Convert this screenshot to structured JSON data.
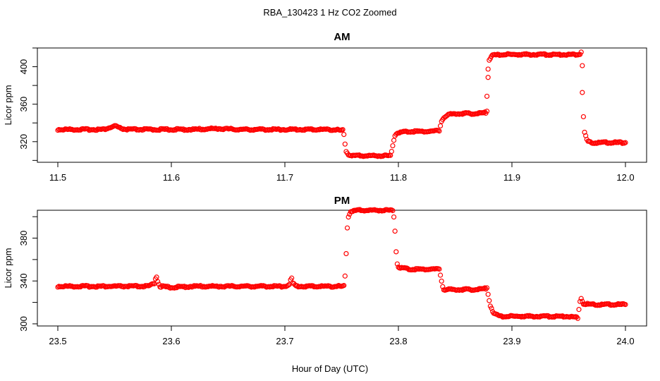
{
  "figure": {
    "title": "RBA_130423  1 Hz CO2 Zoomed",
    "xlabel": "Hour of Day (UTC)"
  },
  "chart_data": [
    {
      "type": "scatter",
      "title": "AM",
      "ylabel": "Licor ppm",
      "xlim": [
        11.5,
        12.0
      ],
      "ylim": [
        298,
        420
      ],
      "xticks": [
        11.5,
        11.6,
        11.7,
        11.8,
        11.9,
        12.0
      ],
      "xtick_labels": [
        "11.5",
        "11.6",
        "11.7",
        "11.8",
        "11.9",
        "12.0"
      ],
      "yticks": [
        320,
        360,
        400
      ],
      "ytick_labels": [
        "320",
        "360",
        "400"
      ],
      "marker_color": "#ff0000",
      "grid": false,
      "points": [
        [
          11.5,
          333
        ],
        [
          11.52,
          333
        ],
        [
          11.54,
          333
        ],
        [
          11.549,
          336
        ],
        [
          11.551,
          337
        ],
        [
          11.553,
          335
        ],
        [
          11.56,
          333
        ],
        [
          11.58,
          333
        ],
        [
          11.6,
          333
        ],
        [
          11.62,
          333
        ],
        [
          11.64,
          334
        ],
        [
          11.66,
          333
        ],
        [
          11.68,
          333
        ],
        [
          11.7,
          333
        ],
        [
          11.72,
          333
        ],
        [
          11.74,
          333
        ],
        [
          11.751,
          332
        ],
        [
          11.752,
          327
        ],
        [
          11.753,
          318
        ],
        [
          11.754,
          310
        ],
        [
          11.756,
          306
        ],
        [
          11.76,
          305
        ],
        [
          11.77,
          305
        ],
        [
          11.78,
          305
        ],
        [
          11.79,
          305
        ],
        [
          11.793,
          305
        ],
        [
          11.794,
          310
        ],
        [
          11.795,
          316
        ],
        [
          11.796,
          322
        ],
        [
          11.797,
          327
        ],
        [
          11.8,
          330
        ],
        [
          11.81,
          331
        ],
        [
          11.82,
          331
        ],
        [
          11.83,
          331
        ],
        [
          11.836,
          332
        ],
        [
          11.837,
          337
        ],
        [
          11.838,
          342
        ],
        [
          11.84,
          346
        ],
        [
          11.845,
          349
        ],
        [
          11.85,
          350
        ],
        [
          11.86,
          350
        ],
        [
          11.87,
          350
        ],
        [
          11.877,
          351
        ],
        [
          11.878,
          353
        ],
        [
          11.878,
          369
        ],
        [
          11.879,
          389
        ],
        [
          11.879,
          398
        ],
        [
          11.88,
          407
        ],
        [
          11.882,
          412
        ],
        [
          11.89,
          413
        ],
        [
          11.9,
          413
        ],
        [
          11.91,
          413
        ],
        [
          11.92,
          413
        ],
        [
          11.93,
          413
        ],
        [
          11.94,
          413
        ],
        [
          11.95,
          413
        ],
        [
          11.958,
          413
        ],
        [
          11.96,
          414
        ],
        [
          11.961,
          416
        ],
        [
          11.962,
          402
        ],
        [
          11.962,
          373
        ],
        [
          11.963,
          346
        ],
        [
          11.964,
          330
        ],
        [
          11.965,
          326
        ],
        [
          11.966,
          322
        ],
        [
          11.967,
          320
        ],
        [
          11.97,
          319
        ],
        [
          11.98,
          319
        ],
        [
          11.99,
          319
        ],
        [
          12.0,
          319
        ]
      ]
    },
    {
      "type": "scatter",
      "title": "PM",
      "ylabel": "Licor ppm",
      "xlim": [
        23.5,
        24.0
      ],
      "ylim": [
        298,
        406
      ],
      "xticks": [
        23.5,
        23.6,
        23.7,
        23.8,
        23.9,
        24.0
      ],
      "xtick_labels": [
        "23.5",
        "23.6",
        "23.7",
        "23.8",
        "23.9",
        "24.0"
      ],
      "yticks": [
        300,
        340,
        380
      ],
      "ytick_labels": [
        "300",
        "340",
        "380"
      ],
      "marker_color": "#ff0000",
      "grid": false,
      "points": [
        [
          23.5,
          335
        ],
        [
          23.52,
          335
        ],
        [
          23.54,
          335
        ],
        [
          23.56,
          335
        ],
        [
          23.58,
          335
        ],
        [
          23.585,
          338
        ],
        [
          23.586,
          342
        ],
        [
          23.587,
          344
        ],
        [
          23.588,
          340
        ],
        [
          23.59,
          335
        ],
        [
          23.6,
          334
        ],
        [
          23.62,
          335
        ],
        [
          23.64,
          335
        ],
        [
          23.66,
          335
        ],
        [
          23.68,
          335
        ],
        [
          23.7,
          335
        ],
        [
          23.704,
          337
        ],
        [
          23.705,
          341
        ],
        [
          23.706,
          342
        ],
        [
          23.707,
          338
        ],
        [
          23.71,
          335
        ],
        [
          23.72,
          335
        ],
        [
          23.74,
          335
        ],
        [
          23.752,
          335
        ],
        [
          23.753,
          344
        ],
        [
          23.754,
          366
        ],
        [
          23.755,
          390
        ],
        [
          23.756,
          400
        ],
        [
          23.758,
          405
        ],
        [
          23.765,
          406
        ],
        [
          23.77,
          406
        ],
        [
          23.78,
          406
        ],
        [
          23.79,
          406
        ],
        [
          23.795,
          406
        ],
        [
          23.796,
          400
        ],
        [
          23.797,
          387
        ],
        [
          23.798,
          368
        ],
        [
          23.799,
          356
        ],
        [
          23.8,
          353
        ],
        [
          23.81,
          351
        ],
        [
          23.82,
          351
        ],
        [
          23.83,
          351
        ],
        [
          23.836,
          351
        ],
        [
          23.837,
          346
        ],
        [
          23.838,
          340
        ],
        [
          23.839,
          335
        ],
        [
          23.84,
          332
        ],
        [
          23.85,
          332
        ],
        [
          23.86,
          332
        ],
        [
          23.87,
          332
        ],
        [
          23.877,
          333
        ],
        [
          23.878,
          334
        ],
        [
          23.879,
          328
        ],
        [
          23.88,
          322
        ],
        [
          23.881,
          317
        ],
        [
          23.883,
          312
        ],
        [
          23.885,
          309
        ],
        [
          23.89,
          307
        ],
        [
          23.9,
          307
        ],
        [
          23.91,
          307
        ],
        [
          23.92,
          307
        ],
        [
          23.93,
          307
        ],
        [
          23.94,
          307
        ],
        [
          23.95,
          307
        ],
        [
          23.957,
          306
        ],
        [
          23.958,
          305
        ],
        [
          23.959,
          314
        ],
        [
          23.96,
          321
        ],
        [
          23.961,
          324
        ],
        [
          23.963,
          319
        ],
        [
          23.97,
          318
        ],
        [
          23.98,
          318
        ],
        [
          23.99,
          318
        ],
        [
          24.0,
          318
        ]
      ]
    }
  ]
}
